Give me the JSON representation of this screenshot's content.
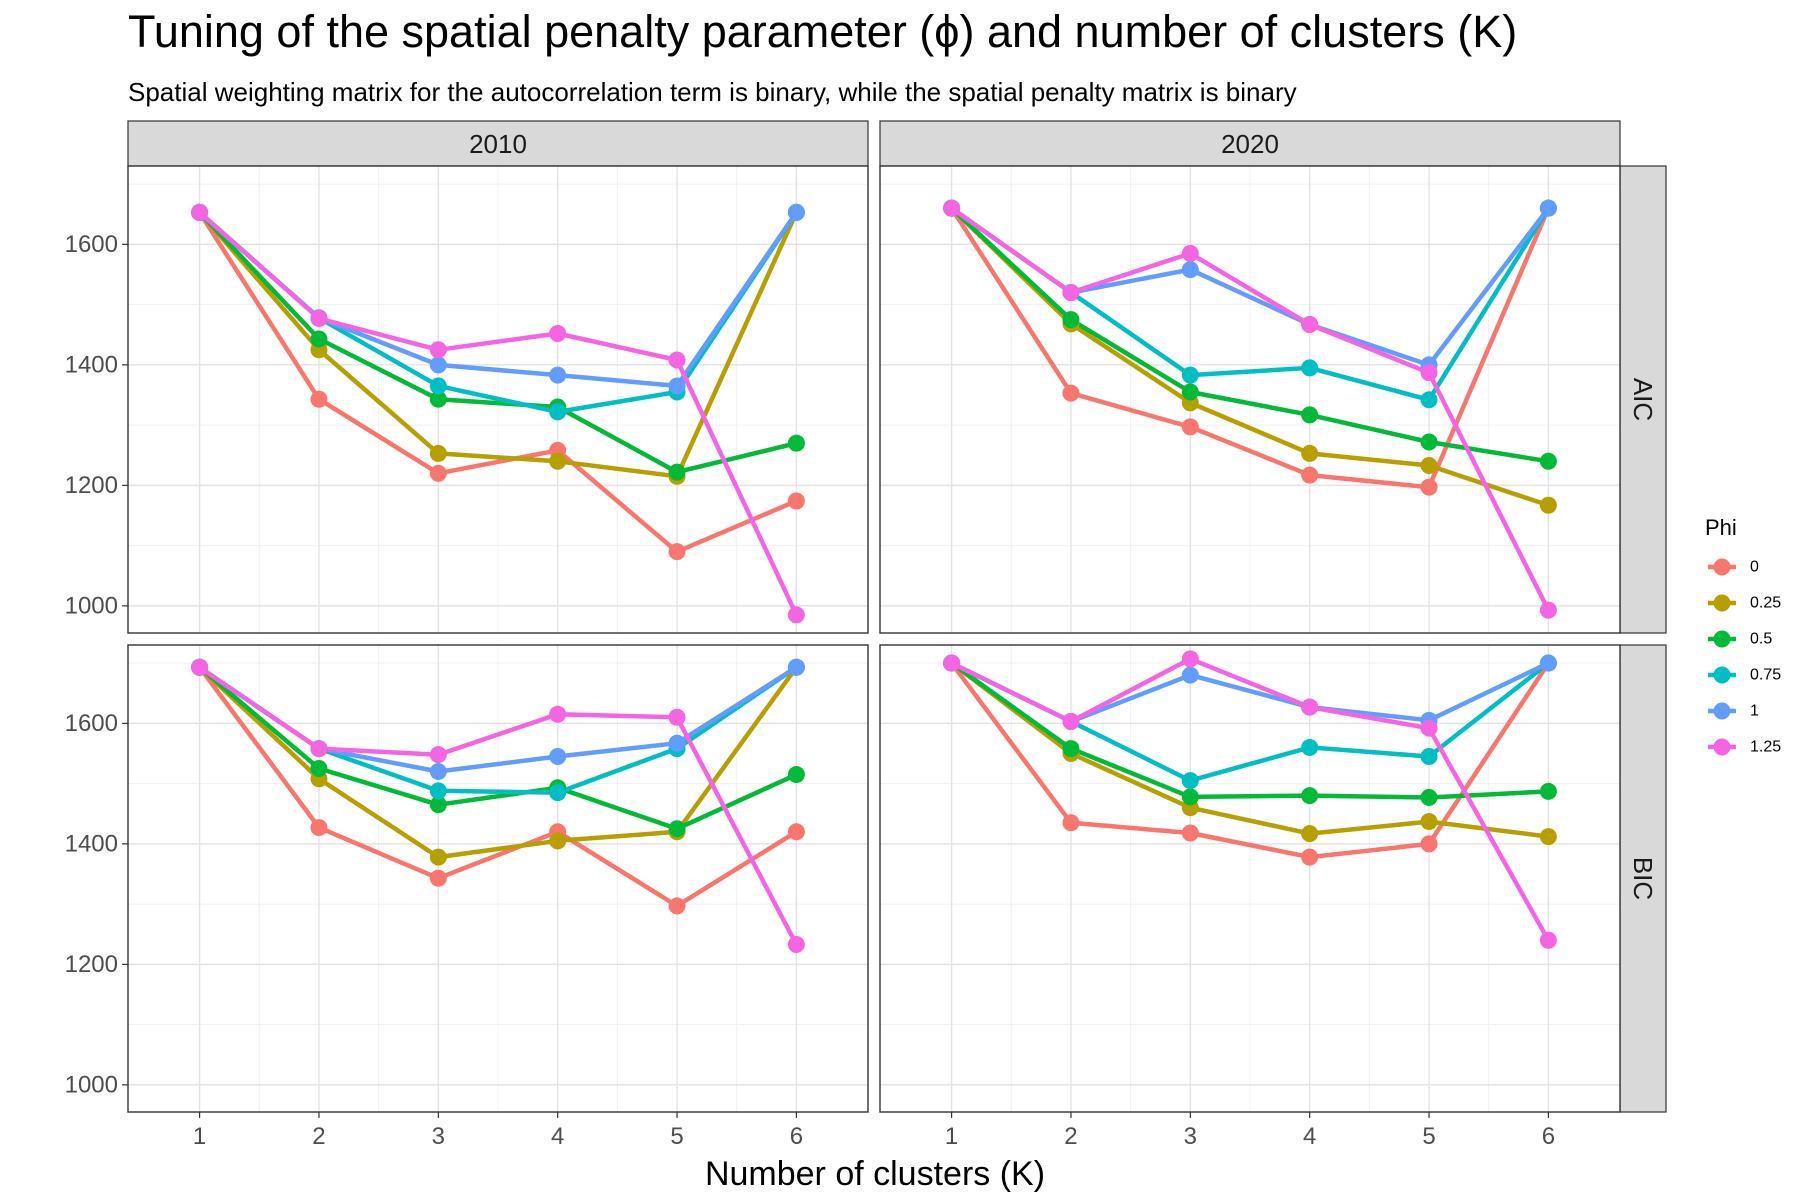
{
  "chart_data": {
    "type": "line",
    "title": "Tuning of the spatial penalty parameter (ϕ) and number of clusters (K)",
    "subtitle": "Spatial weighting matrix for the autocorrelation term is binary, while the spatial penalty matrix is binary",
    "xlabel": "Number of clusters (K)",
    "ylabel": "",
    "x": [
      1,
      2,
      3,
      4,
      5,
      6
    ],
    "xticks": [
      "1",
      "2",
      "3",
      "4",
      "5",
      "6"
    ],
    "yticks": [
      "1000",
      "1200",
      "1400",
      "1600"
    ],
    "ylim": [
      955,
      1730
    ],
    "grid": true,
    "legend": {
      "title": "Phi",
      "position": "right"
    },
    "columns": [
      "2010",
      "2020"
    ],
    "rows": [
      "AIC",
      "BIC"
    ],
    "series": [
      {
        "label": "0",
        "color": "#F8766D"
      },
      {
        "label": "0.25",
        "color": "#B79F00"
      },
      {
        "label": "0.5",
        "color": "#00BA38"
      },
      {
        "label": "0.75",
        "color": "#00BFC4"
      },
      {
        "label": "1",
        "color": "#619CFF"
      },
      {
        "label": "1.25",
        "color": "#F564E3"
      }
    ],
    "panels": [
      {
        "column": "2010",
        "row": "AIC",
        "values": {
          "0": [
            1653,
            1343,
            1220,
            1258,
            1090,
            1174
          ],
          "0.25": [
            1653,
            1425,
            1253,
            1240,
            1215,
            1653
          ],
          "0.5": [
            1653,
            1443,
            1343,
            1330,
            1222,
            1270
          ],
          "0.75": [
            1653,
            1478,
            1365,
            1322,
            1355,
            1653
          ],
          "1": [
            1653,
            1478,
            1400,
            1383,
            1365,
            1653
          ],
          "1.25": [
            1653,
            1477,
            1425,
            1452,
            1408,
            985
          ]
        }
      },
      {
        "column": "2020",
        "row": "AIC",
        "values": {
          "0": [
            1660,
            1353,
            1297,
            1217,
            1197,
            1660
          ],
          "0.25": [
            1660,
            1468,
            1337,
            1253,
            1233,
            1167
          ],
          "0.5": [
            1660,
            1475,
            1355,
            1317,
            1272,
            1240
          ],
          "0.75": [
            1660,
            1520,
            1383,
            1395,
            1342,
            1660
          ],
          "1": [
            1660,
            1520,
            1558,
            1467,
            1400,
            1660
          ],
          "1.25": [
            1660,
            1520,
            1585,
            1467,
            1387,
            993
          ]
        }
      },
      {
        "column": "2010",
        "row": "BIC",
        "values": {
          "0": [
            1693,
            1427,
            1343,
            1420,
            1297,
            1420
          ],
          "0.25": [
            1693,
            1508,
            1378,
            1405,
            1420,
            1693
          ],
          "0.5": [
            1693,
            1525,
            1465,
            1493,
            1425,
            1515
          ],
          "0.75": [
            1693,
            1558,
            1488,
            1485,
            1558,
            1693
          ],
          "1": [
            1693,
            1558,
            1520,
            1545,
            1567,
            1693
          ],
          "1.25": [
            1693,
            1558,
            1548,
            1615,
            1610,
            1233
          ]
        }
      },
      {
        "column": "2020",
        "row": "BIC",
        "values": {
          "0": [
            1700,
            1435,
            1418,
            1378,
            1400,
            1700
          ],
          "0.25": [
            1700,
            1550,
            1460,
            1417,
            1437,
            1412
          ],
          "0.5": [
            1700,
            1558,
            1478,
            1480,
            1477,
            1487
          ],
          "0.75": [
            1700,
            1603,
            1505,
            1560,
            1545,
            1700
          ],
          "1": [
            1700,
            1603,
            1680,
            1627,
            1605,
            1700
          ],
          "1.25": [
            1700,
            1603,
            1707,
            1627,
            1592,
            1240
          ]
        }
      }
    ]
  }
}
